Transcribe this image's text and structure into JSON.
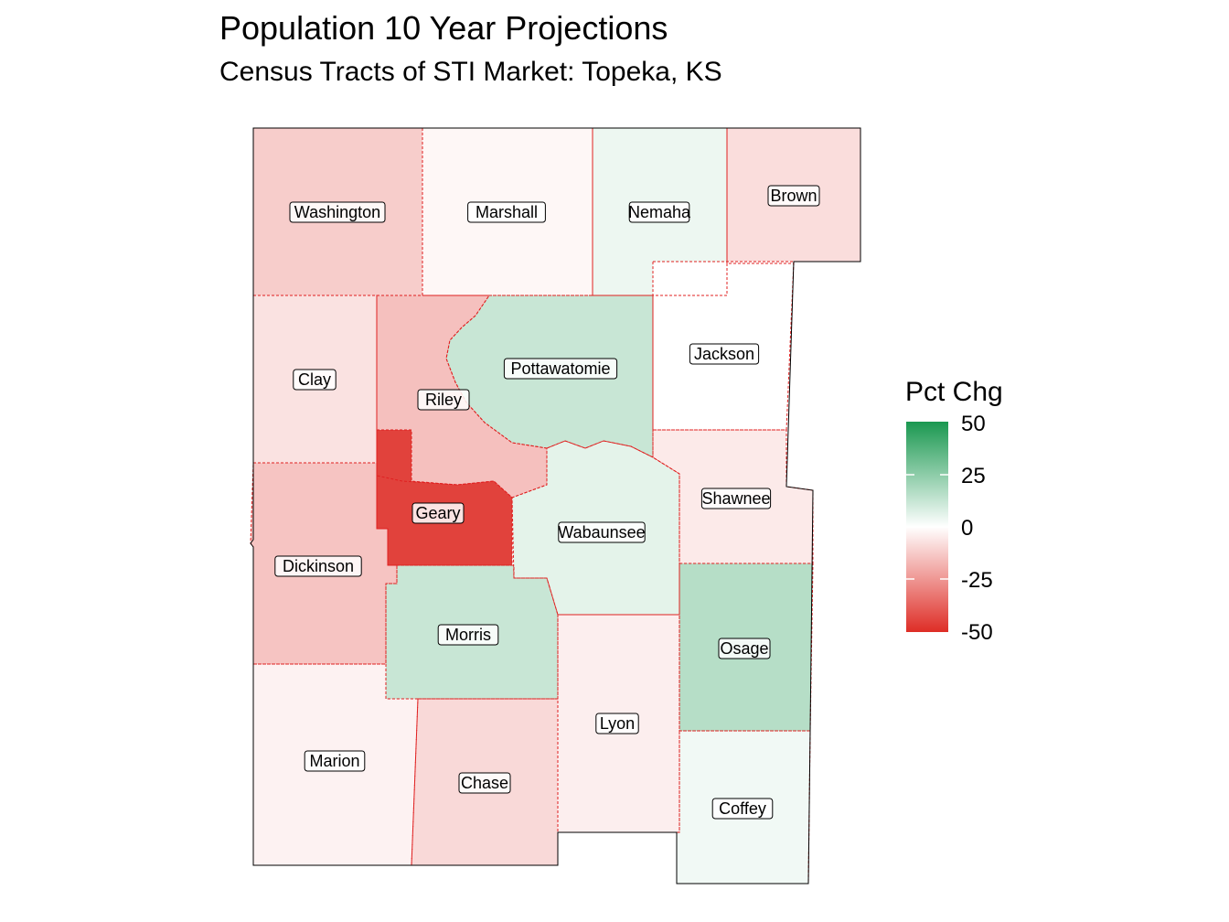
{
  "title": "Population 10 Year Projections",
  "subtitle": "Census Tracts of STI Market: Topeka, KS",
  "legend": {
    "title": "Pct Chg",
    "ticks": [
      "50",
      "25",
      "0",
      "-25",
      "-50"
    ],
    "range": [
      -50,
      50
    ],
    "colors": {
      "low": "#de2d26",
      "mid": "#ffffff",
      "high": "#1a9850"
    }
  },
  "counties": [
    {
      "name": "Washington",
      "pct_chg": -12
    },
    {
      "name": "Marshall",
      "pct_chg": -2
    },
    {
      "name": "Nemaha",
      "pct_chg": 4
    },
    {
      "name": "Brown",
      "pct_chg": -8
    },
    {
      "name": "Clay",
      "pct_chg": -7
    },
    {
      "name": "Riley",
      "pct_chg": -15
    },
    {
      "name": "Pottawatomie",
      "pct_chg": 12
    },
    {
      "name": "Jackson",
      "pct_chg": 0
    },
    {
      "name": "Geary",
      "pct_chg": -45
    },
    {
      "name": "Wabaunsee",
      "pct_chg": 6
    },
    {
      "name": "Shawnee",
      "pct_chg": -5
    },
    {
      "name": "Dickinson",
      "pct_chg": -14
    },
    {
      "name": "Morris",
      "pct_chg": 12
    },
    {
      "name": "Osage",
      "pct_chg": 16
    },
    {
      "name": "Lyon",
      "pct_chg": -4
    },
    {
      "name": "Marion",
      "pct_chg": -3
    },
    {
      "name": "Chase",
      "pct_chg": -9
    },
    {
      "name": "Coffey",
      "pct_chg": 3
    }
  ]
}
